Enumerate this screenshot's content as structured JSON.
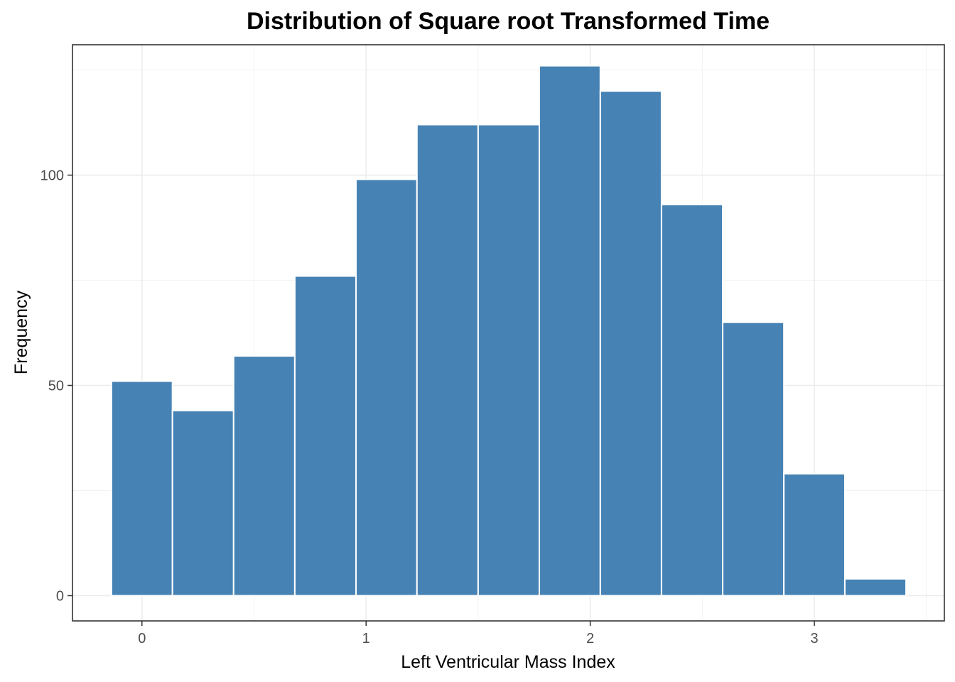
{
  "chart_data": {
    "type": "bar",
    "title": "Distribution of Square root Transformed Time",
    "xlabel": "Left Ventricular Mass Index",
    "ylabel": "Frequency",
    "bin_width": 0.2727,
    "bins": [
      {
        "x_start": -0.136,
        "x_end": 0.136,
        "count": 51
      },
      {
        "x_start": 0.136,
        "x_end": 0.409,
        "count": 44
      },
      {
        "x_start": 0.409,
        "x_end": 0.682,
        "count": 57
      },
      {
        "x_start": 0.682,
        "x_end": 0.955,
        "count": 76
      },
      {
        "x_start": 0.955,
        "x_end": 1.227,
        "count": 99
      },
      {
        "x_start": 1.227,
        "x_end": 1.5,
        "count": 112
      },
      {
        "x_start": 1.5,
        "x_end": 1.773,
        "count": 112
      },
      {
        "x_start": 1.773,
        "x_end": 2.045,
        "count": 126
      },
      {
        "x_start": 2.045,
        "x_end": 2.318,
        "count": 120
      },
      {
        "x_start": 2.318,
        "x_end": 2.591,
        "count": 93
      },
      {
        "x_start": 2.591,
        "x_end": 2.864,
        "count": 65
      },
      {
        "x_start": 2.864,
        "x_end": 3.136,
        "count": 29
      },
      {
        "x_start": 3.136,
        "x_end": 3.409,
        "count": 4
      }
    ],
    "xlim": [
      -0.31,
      3.58
    ],
    "ylim": [
      -6,
      131
    ],
    "x_ticks": [
      0,
      1,
      2,
      3
    ],
    "x_tick_labels": [
      "0",
      "1",
      "2",
      "3"
    ],
    "y_ticks": [
      0,
      50,
      100
    ],
    "y_tick_labels": [
      "0",
      "50",
      "100"
    ],
    "grid": true,
    "theme": "bw",
    "colors": {
      "bar_fill": "#4682B4",
      "bar_outline": "#FFFFFF",
      "grid_major": "#EBEBEB",
      "grid_minor": "#F2F2F2",
      "panel_border": "#333333",
      "tick_label": "#4D4D4D"
    }
  }
}
